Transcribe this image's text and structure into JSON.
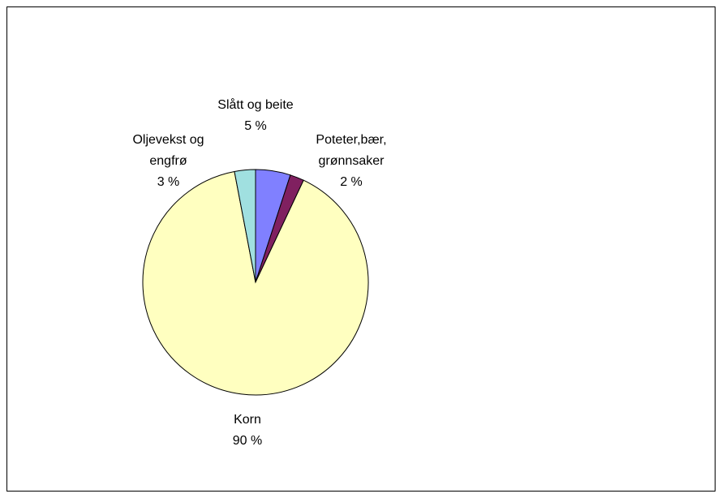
{
  "chart_data": {
    "type": "pie",
    "categories": [
      "Slått og beite",
      "Poteter,bær, grønnsaker",
      "Korn",
      "Oljevekst og engfrø"
    ],
    "values": [
      5,
      2,
      90,
      3
    ],
    "value_labels": [
      "5 %",
      "2 %",
      "90 %",
      "3 %"
    ],
    "colors": [
      "#8080ff",
      "#802060",
      "#ffffc0",
      "#a0e0e0"
    ]
  }
}
